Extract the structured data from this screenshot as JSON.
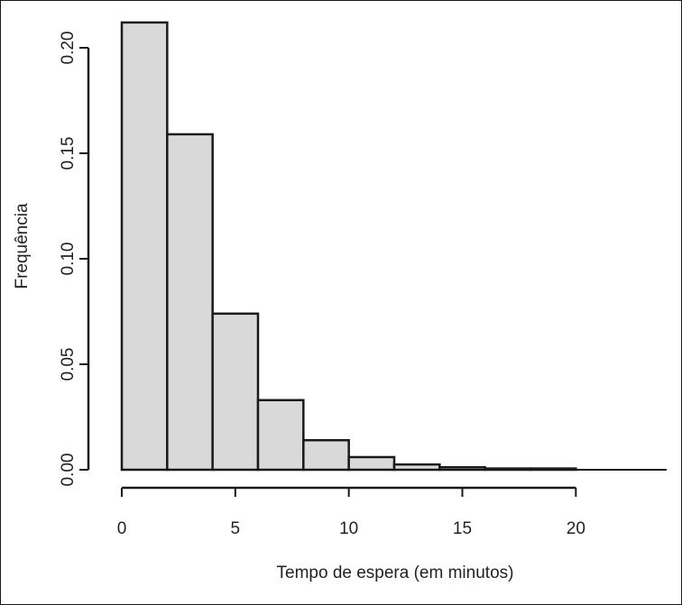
{
  "chart_data": {
    "type": "bar",
    "subtype": "histogram",
    "xlabel": "Tempo de espera (em minutos)",
    "ylabel": "Frequência",
    "xlim": [
      0,
      24
    ],
    "ylim": [
      0,
      0.2
    ],
    "x_ticks": [
      "0",
      "5",
      "10",
      "15",
      "20"
    ],
    "x_tick_values": [
      0,
      5,
      10,
      15,
      20
    ],
    "x_axis_extent": [
      0,
      20
    ],
    "y_ticks": [
      "0.00",
      "0.05",
      "0.10",
      "0.15",
      "0.20"
    ],
    "y_tick_values": [
      0,
      0.05,
      0.1,
      0.15,
      0.2
    ],
    "bin_edges": [
      0,
      2,
      4,
      6,
      8,
      10,
      12,
      14,
      16,
      18,
      20,
      22,
      24
    ],
    "values": [
      0.212,
      0.159,
      0.074,
      0.033,
      0.014,
      0.006,
      0.0025,
      0.0012,
      0.0006,
      0.0006,
      0.0,
      0.0
    ],
    "bar_fill": "#d9d9d9",
    "bar_stroke": "#1a1a1a",
    "grid": false
  }
}
